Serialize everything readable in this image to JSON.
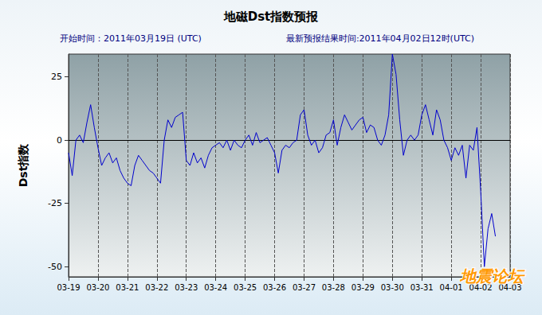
{
  "chart_data": {
    "type": "line",
    "title": "地磁Dst指数预报",
    "subtitle": [
      "开始时间：2011年03月19日 (UTC)",
      "最新预报结果时间:2011年04月02日12时(UTC)"
    ],
    "y_label": "Dst指数",
    "annotations": [
      "地震论坛"
    ],
    "categories": [
      "03-19",
      null,
      null,
      null,
      null,
      null,
      null,
      null,
      "03-20",
      null,
      null,
      null,
      null,
      null,
      null,
      null,
      "03-21",
      null,
      null,
      null,
      null,
      null,
      null,
      null,
      "03-22",
      null,
      null,
      null,
      null,
      null,
      null,
      null,
      "03-23",
      null,
      null,
      null,
      null,
      null,
      null,
      null,
      "03-24",
      null,
      null,
      null,
      null,
      null,
      null,
      null,
      "03-25",
      null,
      null,
      null,
      null,
      null,
      null,
      null,
      "03-26",
      null,
      null,
      null,
      null,
      null,
      null,
      null,
      "03-27",
      null,
      null,
      null,
      null,
      null,
      null,
      null,
      "03-28",
      null,
      null,
      null,
      null,
      null,
      null,
      null,
      "03-29",
      null,
      null,
      null,
      null,
      null,
      null,
      null,
      "03-30",
      null,
      null,
      null,
      null,
      null,
      null,
      null,
      "03-31",
      null,
      null,
      null,
      null,
      null,
      null,
      null,
      "04-01",
      null,
      null,
      null,
      null,
      null,
      null,
      null,
      "04-02",
      null,
      null,
      null,
      null,
      null,
      null,
      null,
      "04-03"
    ],
    "values": [
      -5,
      -14,
      0,
      2,
      -1,
      7,
      14,
      5,
      -3,
      -10,
      -7,
      -5,
      -9,
      -7,
      -12,
      -15,
      -17,
      -18,
      -10,
      -6,
      -8,
      -10,
      -12,
      -13,
      -15,
      -17,
      0,
      8,
      5,
      9,
      10,
      11,
      -8,
      -10,
      -5,
      -9,
      -7,
      -11,
      -6,
      -3,
      -2,
      -1,
      -3,
      0,
      -4,
      0,
      -2,
      -3,
      0,
      2,
      -2,
      3,
      -1,
      0,
      1,
      -2,
      -5,
      -13,
      -4,
      -2,
      -3,
      -1,
      0,
      10,
      12,
      2,
      -2,
      0,
      -5,
      -3,
      2,
      3,
      8,
      -2,
      5,
      10,
      7,
      4,
      6,
      8,
      9,
      3,
      6,
      5,
      0,
      -2,
      2,
      10,
      34,
      26,
      8,
      -6,
      0,
      2,
      0,
      2,
      10,
      14,
      8,
      2,
      12,
      8,
      0,
      -3,
      -8,
      -3,
      -6,
      -2,
      -15,
      -2,
      -4,
      5,
      -20,
      -50,
      -35,
      -29,
      -38,
      null,
      null,
      null,
      null
    ],
    "color": "#0000cc",
    "ylim": [
      -54,
      34
    ],
    "yticks": [
      -50,
      -25,
      0,
      25
    ],
    "grid": true,
    "line_style": "solid",
    "marker": "none"
  }
}
